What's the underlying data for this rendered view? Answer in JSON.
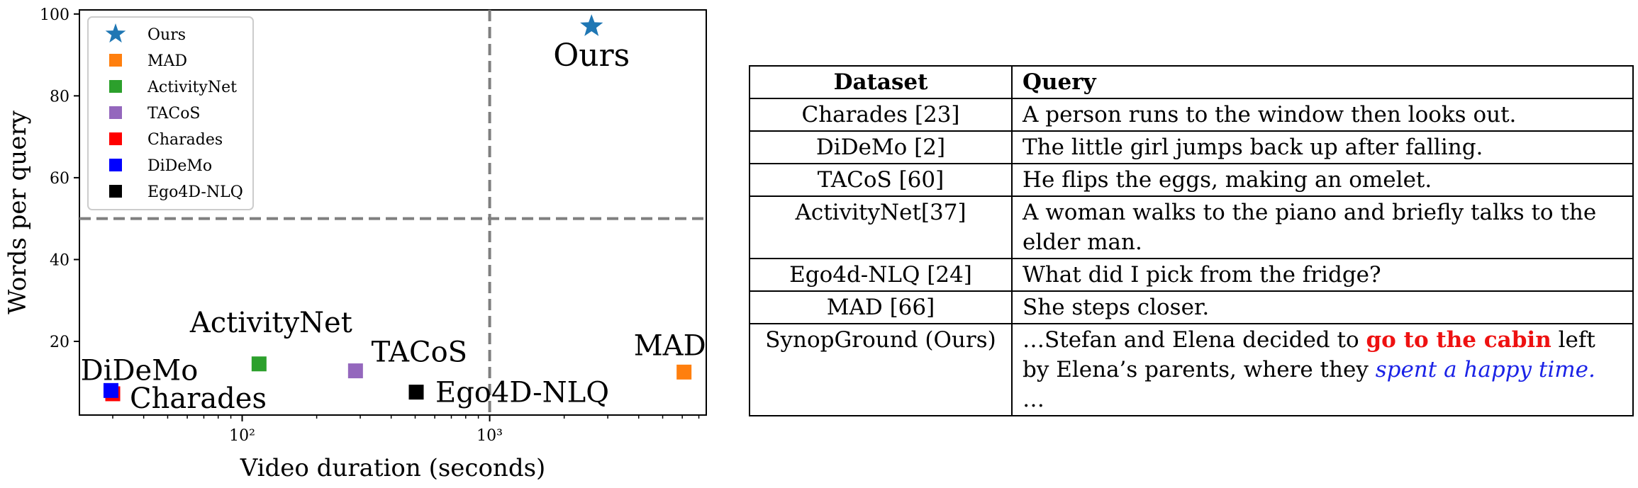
{
  "chart_data": {
    "type": "scatter",
    "xlabel": "Video duration (seconds)",
    "ylabel": "Words per query",
    "xscale": "log",
    "xlim": [
      22,
      7500
    ],
    "ylim": [
      2,
      101
    ],
    "xticks": [
      {
        "value": 100,
        "label": "10²"
      },
      {
        "value": 1000,
        "label": "10³"
      }
    ],
    "yticks": [
      20,
      40,
      60,
      80,
      100
    ],
    "reference_lines": {
      "x": 1000,
      "y": 50,
      "style": "dashed",
      "color": "#7f7f7f"
    },
    "grid": false,
    "legend_position": "top-left",
    "series": [
      {
        "name": "Ours",
        "marker": "star",
        "color": "#1f77b4",
        "x": 2580,
        "y": 97,
        "label": "Ours"
      },
      {
        "name": "MAD",
        "marker": "square",
        "color": "#ff7f0e",
        "x": 6100,
        "y": 12.5,
        "label": "MAD"
      },
      {
        "name": "ActivityNet",
        "marker": "square",
        "color": "#2ca02c",
        "x": 117,
        "y": 14.5,
        "label": "ActivityNet"
      },
      {
        "name": "TACoS",
        "marker": "square",
        "color": "#9467bd",
        "x": 287,
        "y": 12.8,
        "label": "TACoS"
      },
      {
        "name": "Charades",
        "marker": "square",
        "color": "#ff0000",
        "x": 30,
        "y": 7.2,
        "label": "Charades"
      },
      {
        "name": "DiDeMo",
        "marker": "square",
        "color": "#0000ff",
        "x": 29.5,
        "y": 8.0,
        "label": "DiDeMo"
      },
      {
        "name": "Ego4D-NLQ",
        "marker": "square",
        "color": "#000000",
        "x": 505,
        "y": 7.6,
        "label": "Ego4D-NLQ"
      }
    ]
  },
  "table": {
    "headers": [
      "Dataset",
      "Query"
    ],
    "rows": [
      {
        "dataset": "Charades [23]",
        "query": "A person runs to the window then looks out."
      },
      {
        "dataset": "DiDeMo [2]",
        "query": "The little girl jumps back up after falling."
      },
      {
        "dataset": "TACoS [60]",
        "query": "He flips the eggs, making an omelet."
      },
      {
        "dataset": "ActivityNet[37]",
        "query": "A woman walks to the piano and briefly talks to the elder man."
      },
      {
        "dataset": "Ego4d-NLQ [24]",
        "query": "What did I pick from the fridge?"
      },
      {
        "dataset": "MAD [66]",
        "query": "She steps closer."
      }
    ],
    "last_row": {
      "dataset": "SynopGround (Ours)",
      "query_start": "…Stefan and Elena decided to ",
      "query_red": "go to the cabin",
      "query_mid": " left by Elena’s parents, where they ",
      "query_blue": "spent a happy time.",
      "query_end": " …"
    }
  }
}
